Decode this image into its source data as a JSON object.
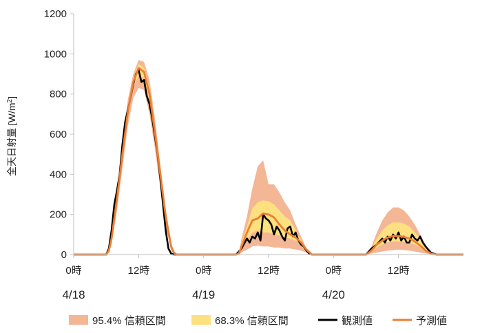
{
  "chart_data": {
    "type": "area",
    "title": "",
    "xlabel": "",
    "ylabel": "全天日射量 [W/m²]",
    "ylabel_parts": {
      "main": "全天日射量 [W/m",
      "sup": "2",
      "close": "]"
    },
    "ylim": [
      0,
      1200
    ],
    "yticks": [
      0,
      200,
      400,
      600,
      800,
      1000,
      1200
    ],
    "xlim": [
      0,
      72
    ],
    "x_unit": "hours since 4/18 0時",
    "xticks": [
      {
        "x": 0,
        "label": "0時"
      },
      {
        "x": 12,
        "label": "12時"
      },
      {
        "x": 24,
        "label": "0時"
      },
      {
        "x": 36,
        "label": "12時"
      },
      {
        "x": 48,
        "label": "0時"
      },
      {
        "x": 60,
        "label": "12時"
      }
    ],
    "date_labels": [
      {
        "x": 0,
        "label": "4/18"
      },
      {
        "x": 24,
        "label": "4/19"
      },
      {
        "x": 48,
        "label": "4/20"
      }
    ],
    "grid": false,
    "legend_position": "bottom",
    "series": [
      {
        "name": "95.4% 信頼区間",
        "kind": "band",
        "color": "#f4b796",
        "x": [
          0,
          6,
          6.5,
          7,
          8,
          9,
          10,
          11,
          12,
          13,
          14,
          15,
          16,
          17,
          18,
          18.5,
          19,
          24,
          30,
          30.5,
          31,
          32,
          33,
          34,
          35,
          36,
          37,
          38,
          39,
          40,
          41,
          42,
          43,
          44,
          48,
          54,
          55,
          56,
          57,
          58,
          59,
          60,
          61,
          62,
          63,
          64,
          65,
          66,
          67,
          72
        ],
        "lower": [
          0,
          0,
          10,
          50,
          220,
          430,
          640,
          780,
          830,
          820,
          700,
          530,
          330,
          140,
          20,
          5,
          0,
          0,
          0,
          0,
          10,
          25,
          40,
          45,
          40,
          40,
          35,
          35,
          30,
          30,
          25,
          20,
          10,
          0,
          0,
          0,
          5,
          10,
          15,
          20,
          22,
          25,
          22,
          20,
          15,
          10,
          5,
          2,
          0,
          0
        ],
        "upper": [
          0,
          0,
          30,
          110,
          330,
          560,
          770,
          900,
          970,
          960,
          870,
          680,
          450,
          230,
          60,
          20,
          0,
          0,
          0,
          10,
          80,
          190,
          330,
          440,
          470,
          350,
          350,
          310,
          260,
          220,
          150,
          90,
          30,
          0,
          0,
          0,
          40,
          110,
          170,
          210,
          235,
          235,
          220,
          190,
          150,
          100,
          50,
          10,
          0,
          0
        ]
      },
      {
        "name": "68.3% 信頼区間",
        "kind": "band",
        "color": "#fde080",
        "x": [
          0,
          6,
          6.5,
          7,
          8,
          9,
          10,
          11,
          12,
          13,
          14,
          15,
          16,
          17,
          18,
          18.5,
          19,
          24,
          30,
          30.5,
          31,
          32,
          33,
          34,
          35,
          36,
          37,
          38,
          39,
          40,
          41,
          42,
          43,
          44,
          48,
          54,
          55,
          56,
          57,
          58,
          59,
          60,
          61,
          62,
          63,
          64,
          65,
          66,
          67,
          72
        ],
        "lower": [
          0,
          0,
          20,
          70,
          260,
          480,
          700,
          840,
          890,
          880,
          760,
          570,
          370,
          170,
          30,
          10,
          0,
          0,
          0,
          5,
          30,
          70,
          110,
          120,
          110,
          110,
          100,
          95,
          85,
          80,
          70,
          50,
          20,
          0,
          0,
          0,
          15,
          35,
          50,
          60,
          65,
          65,
          62,
          58,
          50,
          35,
          15,
          5,
          0,
          0
        ],
        "upper": [
          0,
          0,
          25,
          90,
          300,
          530,
          740,
          880,
          950,
          930,
          830,
          640,
          420,
          210,
          50,
          15,
          0,
          0,
          0,
          8,
          60,
          140,
          230,
          260,
          270,
          265,
          250,
          220,
          190,
          170,
          120,
          70,
          25,
          0,
          0,
          0,
          30,
          80,
          120,
          145,
          160,
          160,
          155,
          140,
          110,
          80,
          40,
          10,
          0,
          0
        ]
      },
      {
        "name": "観測値",
        "kind": "line",
        "color": "#000000",
        "x": [
          0,
          6,
          6.5,
          7,
          7.5,
          8,
          8.5,
          9,
          9.5,
          10,
          10.5,
          11,
          11.5,
          12,
          12.5,
          13,
          13.5,
          14,
          14.5,
          15,
          15.5,
          16,
          16.5,
          17,
          17.5,
          18,
          18.5,
          19,
          24,
          30,
          31,
          32,
          32.5,
          33,
          33.5,
          34,
          34.5,
          35,
          35.5,
          36,
          36.5,
          37,
          37.5,
          38,
          38.5,
          39,
          39.5,
          40,
          40.5,
          41,
          41.5,
          42,
          42.5,
          43,
          43.5,
          44,
          48,
          54,
          55,
          56,
          57,
          57.5,
          58,
          58.5,
          59,
          59.5,
          60,
          60.5,
          61,
          61.5,
          62,
          62.5,
          63,
          63.5,
          64,
          64.5,
          65,
          66,
          67,
          72
        ],
        "y": [
          0,
          0,
          30,
          120,
          250,
          320,
          400,
          550,
          660,
          720,
          780,
          850,
          900,
          920,
          860,
          870,
          790,
          750,
          680,
          590,
          500,
          380,
          250,
          120,
          30,
          5,
          0,
          0,
          0,
          0,
          30,
          80,
          60,
          90,
          80,
          110,
          70,
          200,
          180,
          170,
          150,
          100,
          140,
          120,
          90,
          70,
          130,
          140,
          90,
          110,
          70,
          50,
          40,
          20,
          5,
          0,
          0,
          0,
          30,
          50,
          80,
          60,
          90,
          70,
          100,
          80,
          110,
          70,
          90,
          60,
          60,
          100,
          80,
          70,
          90,
          60,
          40,
          10,
          0,
          0
        ]
      },
      {
        "name": "予測値",
        "kind": "line",
        "color": "#ed7d31",
        "x": [
          0,
          6,
          6.5,
          7,
          8,
          9,
          10,
          11,
          12,
          13,
          14,
          15,
          16,
          17,
          18,
          18.5,
          19,
          24,
          30,
          30.5,
          31,
          32,
          33,
          34,
          35,
          36,
          37,
          38,
          39,
          40,
          41,
          42,
          43,
          44,
          48,
          54,
          55,
          56,
          57,
          58,
          59,
          60,
          61,
          62,
          63,
          64,
          65,
          66,
          67,
          72
        ],
        "y": [
          0,
          0,
          20,
          80,
          280,
          500,
          710,
          860,
          930,
          910,
          800,
          610,
          400,
          190,
          40,
          10,
          0,
          0,
          0,
          5,
          40,
          110,
          170,
          180,
          205,
          200,
          185,
          150,
          120,
          100,
          85,
          60,
          25,
          0,
          0,
          0,
          20,
          50,
          70,
          85,
          92,
          92,
          88,
          80,
          65,
          45,
          20,
          5,
          0,
          0
        ]
      }
    ]
  }
}
